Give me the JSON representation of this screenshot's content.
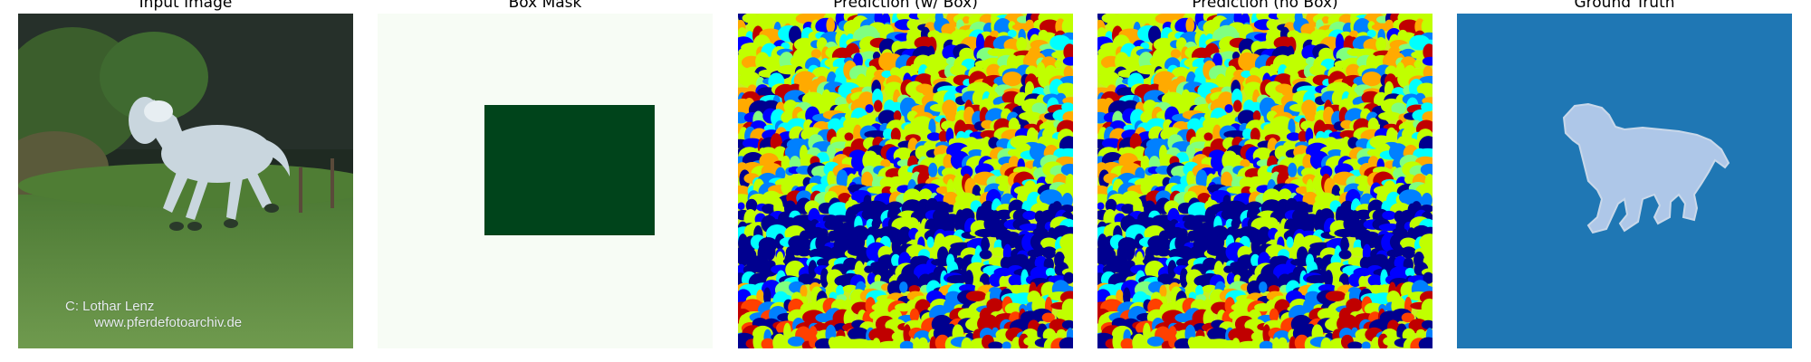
{
  "panels": [
    {
      "title": "Input Image"
    },
    {
      "title": "Box Mask"
    },
    {
      "title": "Prediction (w/ Box)"
    },
    {
      "title": "Prediction (no Box)"
    },
    {
      "title": "Ground Truth"
    }
  ],
  "input_image": {
    "credit_line1": "C:  Lothar Lenz",
    "credit_line2": "www.pferdefotoarchiv.de"
  },
  "colors": {
    "mask_background": "#f7fcf5",
    "mask_box": "#00441b",
    "gt_background": "#1f77b4",
    "gt_object": "#aec7e8",
    "jet_palette": [
      "#00008f",
      "#0000ff",
      "#0080ff",
      "#00ffff",
      "#80ff80",
      "#c0ff00",
      "#ffff00",
      "#ffaa00",
      "#ff4000",
      "#c00000"
    ]
  }
}
